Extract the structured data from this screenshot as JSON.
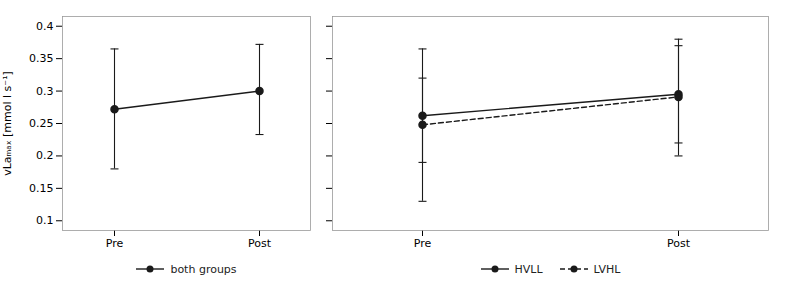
{
  "chart_data": [
    {
      "type": "line",
      "categories": [
        "Pre",
        "Post"
      ],
      "y_label": "vLaₘₐₓ [mmol l s⁻¹]",
      "ylim": [
        0.085,
        0.415
      ],
      "yticks": [
        0.1,
        0.15,
        0.2,
        0.25,
        0.3,
        0.35,
        0.4
      ],
      "legend": "bottom",
      "series": [
        {
          "name": "both groups",
          "color": "#1a1a1a",
          "line_style": "solid",
          "marker": "circle",
          "values": [
            0.272,
            0.3
          ],
          "error_lower": [
            0.092,
            0.067
          ],
          "error_upper": [
            0.093,
            0.072
          ]
        }
      ]
    },
    {
      "type": "line",
      "categories": [
        "Pre",
        "Post"
      ],
      "ylim": [
        0.085,
        0.415
      ],
      "yticks": [
        0.1,
        0.15,
        0.2,
        0.25,
        0.3,
        0.35,
        0.4
      ],
      "tick_labels": "x",
      "legend": "bottom",
      "series": [
        {
          "name": "HVLL",
          "color": "#1a1a1a",
          "line_style": "solid",
          "marker": "circle",
          "values": [
            0.262,
            0.295
          ],
          "error_lower": [
            0.072,
            0.075
          ],
          "error_upper": [
            0.058,
            0.075
          ]
        },
        {
          "name": "LVHL",
          "color": "#1a1a1a",
          "line_style": "dashed",
          "marker": "circle",
          "values": [
            0.248,
            0.291
          ],
          "error_lower": [
            0.118,
            0.091
          ],
          "error_upper": [
            0.117,
            0.089
          ]
        }
      ]
    }
  ]
}
